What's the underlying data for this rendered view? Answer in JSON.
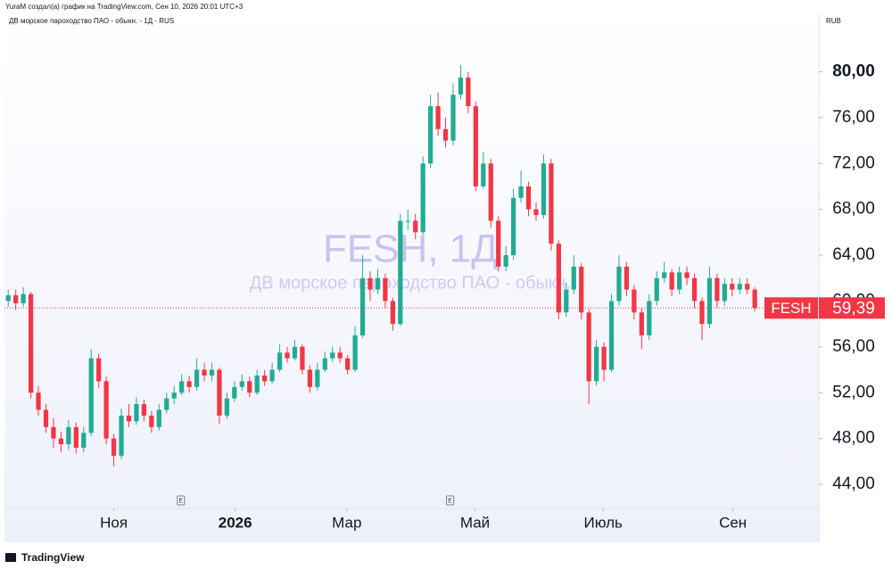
{
  "header": {
    "caption": "YuraM создал(а) график на TradingView.com, Сен 10, 2026 20:01 UTC+3",
    "legend": "ДВ морское пароходство ПАО - обыкн. - 1Д - RUS",
    "currency": "RUB",
    "watermark_title": "FESH, 1Д",
    "watermark_subtitle": "ДВ морское пароходство ПАО - обыкн."
  },
  "footer": {
    "brand": "TradingView"
  },
  "chart_data": {
    "type": "candlestick",
    "symbol": "FESH",
    "last_value_label": "59,39",
    "up_color": "#22ab94",
    "down_color": "#f23645",
    "xlim": [
      0,
      108
    ],
    "xticks": [
      {
        "value": 14.5,
        "label": "Ноя"
      },
      {
        "value": 30.6,
        "label": "2026"
      },
      {
        "value": 45.4,
        "label": "Мар"
      },
      {
        "value": 62.4,
        "label": "Май"
      },
      {
        "value": 79.4,
        "label": "Июль"
      },
      {
        "value": 96.6,
        "label": "Сен"
      }
    ],
    "ylim": [
      41.9,
      85.1
    ],
    "yticks": [
      {
        "value": 44,
        "label": "44,00"
      },
      {
        "value": 48,
        "label": "48,00"
      },
      {
        "value": 52,
        "label": "52,00"
      },
      {
        "value": 56,
        "label": "56,00"
      },
      {
        "value": 60,
        "label": "60,00"
      },
      {
        "value": 64,
        "label": "64,00"
      },
      {
        "value": 68,
        "label": "68,00"
      },
      {
        "value": 72,
        "label": "72,00"
      },
      {
        "value": 76,
        "label": "76,00"
      },
      {
        "value": 80,
        "label": "80,00"
      }
    ],
    "events": [
      {
        "x": 23.4,
        "label": "E"
      },
      {
        "x": 59.1,
        "label": "E"
      }
    ],
    "open": [
      60,
      60.5,
      59.8,
      60.6,
      52,
      50.5,
      49,
      48,
      47.5,
      49,
      47.2,
      48.5,
      55,
      53,
      48,
      46.5,
      50,
      49.5,
      51,
      50,
      49,
      50.5,
      51.5,
      52,
      53,
      52.5,
      54,
      53.5,
      54,
      50,
      51.5,
      52.5,
      53,
      52,
      53.5,
      53,
      54,
      55.5,
      55,
      56,
      54,
      52.5,
      54,
      55,
      55.5,
      55,
      54,
      57,
      62,
      61,
      62,
      60,
      58,
      67,
      67,
      66,
      72,
      77,
      75,
      74,
      78,
      79.5,
      77,
      70,
      72,
      67,
      63,
      64,
      69,
      70,
      68,
      67.5,
      72,
      65,
      59,
      61,
      63,
      59,
      53,
      56,
      54,
      60,
      63,
      61,
      59,
      57,
      60,
      62,
      62.5,
      61,
      62.5,
      62,
      60,
      58,
      62,
      60,
      61.5,
      61,
      61.5,
      61
    ],
    "high": [
      61,
      61,
      61.2,
      60.8,
      52.6,
      51,
      49.8,
      48.6,
      49.6,
      49.4,
      49,
      55.8,
      55.4,
      53.4,
      48.4,
      50.6,
      51,
      51.6,
      51.4,
      50.4,
      51,
      52,
      52.6,
      53.6,
      53.5,
      55,
      54.6,
      54.6,
      54.2,
      52,
      53,
      53.6,
      53.4,
      54,
      54,
      54.6,
      56.2,
      56,
      56.6,
      56.2,
      54.4,
      54.6,
      55.6,
      56,
      56,
      55.3,
      57.8,
      64,
      62.6,
      62.8,
      62.4,
      60.3,
      67.6,
      68,
      67.6,
      72.6,
      78,
      78.2,
      76,
      79,
      80.6,
      80,
      77.4,
      73,
      72.4,
      67.4,
      64.8,
      69.8,
      71.4,
      70.4,
      68.6,
      72.8,
      72.4,
      65.3,
      61.6,
      64,
      63.3,
      59.3,
      56.6,
      56.4,
      60.6,
      64,
      63.4,
      61.4,
      59.4,
      60.6,
      62.6,
      63.4,
      62.8,
      63,
      63,
      62.4,
      60.3,
      63,
      62.4,
      62,
      62,
      62,
      62,
      61.2
    ],
    "low": [
      59.5,
      59.2,
      59.5,
      51.5,
      50,
      48.5,
      47.2,
      46.8,
      47,
      46.7,
      46.8,
      48.2,
      52.4,
      47.5,
      45.6,
      46.2,
      49,
      49.2,
      49.5,
      48.5,
      48.7,
      50.2,
      51,
      51.8,
      52,
      52.2,
      53,
      53,
      49.3,
      49.7,
      51.2,
      52.2,
      51.6,
      51.8,
      52.6,
      52.8,
      53.8,
      54.6,
      54.8,
      53.6,
      52,
      52.2,
      53.8,
      54.7,
      54.6,
      53.6,
      53.8,
      56.8,
      60,
      60.6,
      59.4,
      57.4,
      57.8,
      66.2,
      65.4,
      65.8,
      71.6,
      74.4,
      73.4,
      73.6,
      77.6,
      76.4,
      69.6,
      69.8,
      66.4,
      62.6,
      62.6,
      63.6,
      68.6,
      67.4,
      67,
      67.2,
      64.4,
      58.4,
      58.6,
      60.6,
      58.4,
      51,
      52.6,
      53,
      53.8,
      59.6,
      60.4,
      58.4,
      55.8,
      56.6,
      59.6,
      61.6,
      60.4,
      60.6,
      61.4,
      59.4,
      56.6,
      57.6,
      59.4,
      59.6,
      60.4,
      60.6,
      60.6,
      59.1
    ],
    "close": [
      60.5,
      59.8,
      60.6,
      52,
      50.5,
      49,
      48,
      47.5,
      49,
      47.2,
      48.5,
      55,
      53,
      48,
      46.5,
      50,
      49.5,
      51,
      50,
      49,
      50.5,
      51.5,
      52,
      53,
      52.5,
      54,
      53.5,
      54,
      50,
      51.5,
      52.5,
      53,
      52,
      53.5,
      53,
      54,
      55.5,
      55,
      56,
      54,
      52.5,
      54,
      55,
      55.5,
      55,
      54,
      57,
      62,
      61,
      62,
      60,
      58,
      67,
      67,
      66,
      72,
      77,
      75,
      74,
      78,
      79.5,
      77,
      70,
      72,
      67,
      63,
      64,
      69,
      70,
      68,
      67.5,
      72,
      65,
      59,
      61,
      63,
      59,
      53,
      56,
      54,
      60,
      63,
      61,
      59,
      57,
      60,
      62,
      62.5,
      61,
      62.5,
      62,
      60,
      58,
      62,
      60,
      61.5,
      61,
      61.5,
      61,
      59.39
    ]
  }
}
